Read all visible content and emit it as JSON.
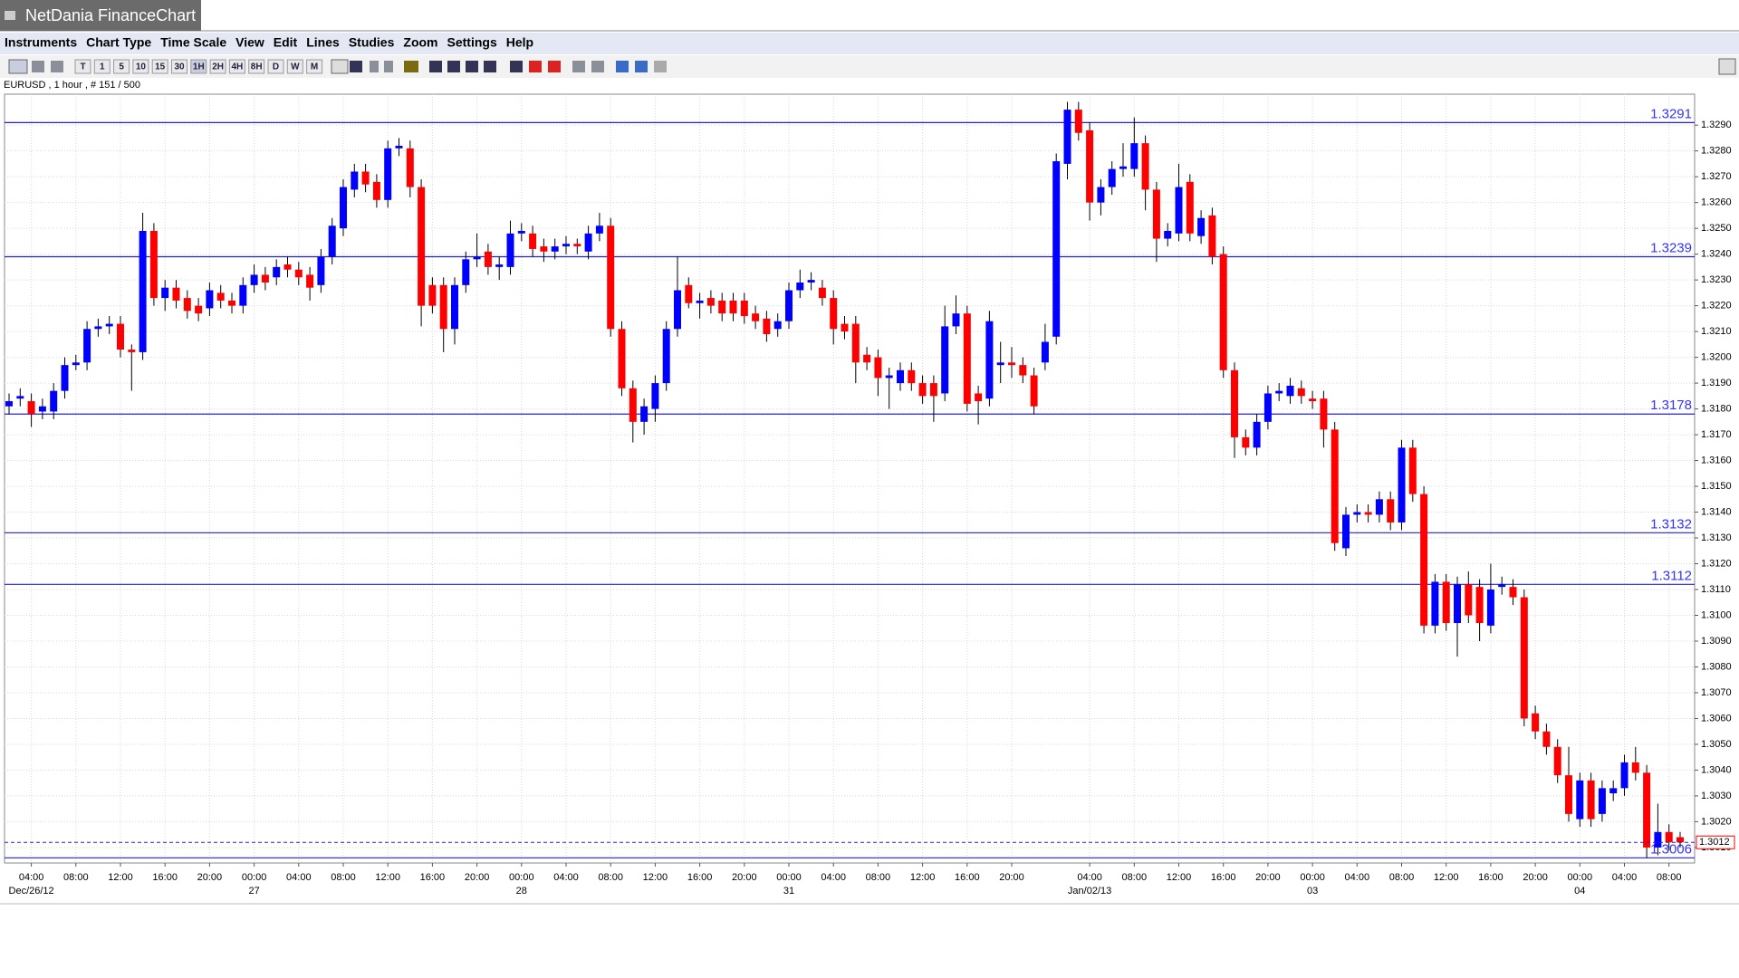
{
  "app": {
    "title": "NetDania FinanceChart",
    "menu": [
      "Instruments",
      "Chart Type",
      "Time Scale",
      "View",
      "Edit",
      "Lines",
      "Studies",
      "Zoom",
      "Settings",
      "Help"
    ],
    "toolbar": [
      "T",
      "1",
      "5",
      "10",
      "15",
      "30",
      "1H",
      "2H",
      "4H",
      "8H",
      "D",
      "W",
      "M"
    ],
    "symbol_info": "EURUSD , 1 hour , # 151 / 500"
  },
  "chart_data": {
    "type": "candlestick",
    "up_color": "#0000ff",
    "down_color": "#ff0000",
    "level_color": "#2222cc",
    "last_color": "#ff0000",
    "grid": true,
    "ylim": [
      1.3004,
      1.3302
    ],
    "yticks": [
      {
        "value": 1.301,
        "label": "1.3010"
      },
      {
        "value": 1.302,
        "label": "1.3020"
      },
      {
        "value": 1.303,
        "label": "1.3030"
      },
      {
        "value": 1.304,
        "label": "1.3040"
      },
      {
        "value": 1.305,
        "label": "1.3050"
      },
      {
        "value": 1.306,
        "label": "1.3060"
      },
      {
        "value": 1.307,
        "label": "1.3070"
      },
      {
        "value": 1.308,
        "label": "1.3080"
      },
      {
        "value": 1.309,
        "label": "1.3090"
      },
      {
        "value": 1.31,
        "label": "1.3100"
      },
      {
        "value": 1.311,
        "label": "1.3110"
      },
      {
        "value": 1.312,
        "label": "1.3120"
      },
      {
        "value": 1.313,
        "label": "1.3130"
      },
      {
        "value": 1.314,
        "label": "1.3140"
      },
      {
        "value": 1.315,
        "label": "1.3150"
      },
      {
        "value": 1.316,
        "label": "1.3160"
      },
      {
        "value": 1.317,
        "label": "1.3170"
      },
      {
        "value": 1.318,
        "label": "1.3180"
      },
      {
        "value": 1.319,
        "label": "1.3190"
      },
      {
        "value": 1.32,
        "label": "1.3200"
      },
      {
        "value": 1.321,
        "label": "1.3210"
      },
      {
        "value": 1.322,
        "label": "1.3220"
      },
      {
        "value": 1.323,
        "label": "1.3230"
      },
      {
        "value": 1.324,
        "label": "1.3240"
      },
      {
        "value": 1.325,
        "label": "1.3250"
      },
      {
        "value": 1.326,
        "label": "1.3260"
      },
      {
        "value": 1.327,
        "label": "1.3270"
      },
      {
        "value": 1.328,
        "label": "1.3280"
      },
      {
        "value": 1.329,
        "label": "1.3290"
      }
    ],
    "levels": [
      1.3291,
      1.3239,
      1.3178,
      1.3132,
      1.3112,
      1.3006
    ],
    "last_price": 1.3012,
    "categories": [
      null,
      null,
      "04:00",
      null,
      null,
      null,
      "08:00",
      null,
      null,
      null,
      "12:00",
      null,
      null,
      null,
      "16:00",
      null,
      null,
      null,
      "20:00",
      null,
      null,
      null,
      "00:00",
      null,
      null,
      null,
      "04:00",
      null,
      null,
      null,
      "08:00",
      null,
      null,
      null,
      "12:00",
      null,
      null,
      null,
      "16:00",
      null,
      null,
      null,
      "20:00",
      null,
      null,
      null,
      "00:00",
      null,
      null,
      null,
      "04:00",
      null,
      null,
      null,
      "08:00",
      null,
      null,
      null,
      "12:00",
      null,
      null,
      null,
      "16:00",
      null,
      null,
      null,
      "20:00",
      null,
      null,
      null,
      "00:00",
      null,
      null,
      null,
      "04:00",
      null,
      null,
      null,
      "08:00",
      null,
      null,
      null,
      "12:00",
      null,
      null,
      null,
      "16:00",
      null,
      null,
      null,
      "20:00",
      null,
      null,
      null,
      null,
      null,
      null,
      "04:00",
      null,
      null,
      null,
      "08:00",
      null,
      null,
      null,
      "12:00",
      null,
      null,
      null,
      "16:00",
      null,
      null,
      null,
      "20:00",
      null,
      null,
      null,
      "00:00",
      null,
      null,
      null,
      "04:00",
      null,
      null,
      null,
      "08:00",
      null,
      null,
      null,
      "12:00",
      null,
      null,
      null,
      "16:00",
      null,
      null,
      null,
      "20:00",
      null,
      null,
      null,
      "00:00",
      null,
      null,
      null,
      "04:00",
      null,
      null,
      null,
      "08:00",
      null
    ],
    "dates": [
      null,
      null,
      "Dec/26/12",
      null,
      null,
      null,
      null,
      null,
      null,
      null,
      null,
      null,
      null,
      null,
      null,
      null,
      null,
      null,
      null,
      null,
      null,
      null,
      "27",
      null,
      null,
      null,
      null,
      null,
      null,
      null,
      null,
      null,
      null,
      null,
      null,
      null,
      null,
      null,
      null,
      null,
      null,
      null,
      null,
      null,
      null,
      null,
      "28",
      null,
      null,
      null,
      null,
      null,
      null,
      null,
      null,
      null,
      null,
      null,
      null,
      null,
      null,
      null,
      null,
      null,
      null,
      null,
      null,
      null,
      null,
      null,
      "31",
      null,
      null,
      null,
      null,
      null,
      null,
      null,
      null,
      null,
      null,
      null,
      null,
      null,
      null,
      null,
      null,
      null,
      null,
      null,
      null,
      null,
      null,
      null,
      null,
      null,
      null,
      "Jan/02/13",
      null,
      null,
      null,
      null,
      null,
      null,
      null,
      null,
      null,
      null,
      null,
      null,
      null,
      null,
      null,
      null,
      null,
      null,
      null,
      "03",
      null,
      null,
      null,
      null,
      null,
      null,
      null,
      null,
      null,
      null,
      null,
      null,
      null,
      null,
      null,
      null,
      null,
      null,
      null,
      null,
      null,
      null,
      null,
      "04",
      null,
      null,
      null,
      null,
      null,
      null,
      null,
      null,
      null
    ],
    "ohlc": [
      [
        1.3181,
        1.3186,
        1.3178,
        1.3183
      ],
      [
        1.3184,
        1.3188,
        1.3181,
        1.3185
      ],
      [
        1.3183,
        1.3186,
        1.3173,
        1.3178
      ],
      [
        1.3179,
        1.3184,
        1.3176,
        1.3181
      ],
      [
        1.3179,
        1.319,
        1.3176,
        1.3187
      ],
      [
        1.3187,
        1.32,
        1.3184,
        1.3197
      ],
      [
        1.3197,
        1.3201,
        1.3195,
        1.3198
      ],
      [
        1.3198,
        1.3214,
        1.3195,
        1.3211
      ],
      [
        1.3211,
        1.3215,
        1.3208,
        1.3212
      ],
      [
        1.3212,
        1.3216,
        1.3209,
        1.3213
      ],
      [
        1.3213,
        1.3216,
        1.32,
        1.3203
      ],
      [
        1.3203,
        1.3205,
        1.3187,
        1.3202
      ],
      [
        1.3202,
        1.3256,
        1.3199,
        1.3249
      ],
      [
        1.3249,
        1.3252,
        1.322,
        1.3223
      ],
      [
        1.3223,
        1.323,
        1.3218,
        1.3227
      ],
      [
        1.3227,
        1.323,
        1.3219,
        1.3222
      ],
      [
        1.3223,
        1.3226,
        1.3215,
        1.3218
      ],
      [
        1.322,
        1.3223,
        1.3214,
        1.3217
      ],
      [
        1.3219,
        1.3229,
        1.3216,
        1.3226
      ],
      [
        1.3225,
        1.3228,
        1.3219,
        1.3222
      ],
      [
        1.3222,
        1.3225,
        1.3217,
        1.322
      ],
      [
        1.322,
        1.3231,
        1.3217,
        1.3228
      ],
      [
        1.3228,
        1.3236,
        1.3225,
        1.3232
      ],
      [
        1.3232,
        1.3235,
        1.3226,
        1.3229
      ],
      [
        1.3231,
        1.3238,
        1.3228,
        1.3235
      ],
      [
        1.3236,
        1.3239,
        1.3231,
        1.3234
      ],
      [
        1.3234,
        1.3237,
        1.3228,
        1.3231
      ],
      [
        1.3232,
        1.3235,
        1.3222,
        1.3227
      ],
      [
        1.3228,
        1.3242,
        1.3225,
        1.3239
      ],
      [
        1.3239,
        1.3254,
        1.3236,
        1.3251
      ],
      [
        1.325,
        1.3269,
        1.3247,
        1.3266
      ],
      [
        1.3265,
        1.3275,
        1.3262,
        1.3272
      ],
      [
        1.3272,
        1.3275,
        1.3264,
        1.3267
      ],
      [
        1.3268,
        1.3271,
        1.3258,
        1.3261
      ],
      [
        1.3261,
        1.3284,
        1.3258,
        1.3281
      ],
      [
        1.3281,
        1.3285,
        1.3278,
        1.3282
      ],
      [
        1.3281,
        1.3284,
        1.3262,
        1.3266
      ],
      [
        1.3266,
        1.3269,
        1.3212,
        1.322
      ],
      [
        1.3228,
        1.3231,
        1.3217,
        1.322
      ],
      [
        1.3228,
        1.3231,
        1.3202,
        1.3211
      ],
      [
        1.3211,
        1.3231,
        1.3205,
        1.3228
      ],
      [
        1.3228,
        1.3241,
        1.3225,
        1.3238
      ],
      [
        1.3238,
        1.3248,
        1.3235,
        1.3239
      ],
      [
        1.3241,
        1.3244,
        1.3232,
        1.3235
      ],
      [
        1.3235,
        1.3239,
        1.323,
        1.3236
      ],
      [
        1.3235,
        1.3253,
        1.3232,
        1.3248
      ],
      [
        1.3248,
        1.3252,
        1.3245,
        1.3249
      ],
      [
        1.3248,
        1.3251,
        1.3239,
        1.3242
      ],
      [
        1.3243,
        1.3246,
        1.3237,
        1.3241
      ],
      [
        1.3241,
        1.3246,
        1.3238,
        1.3243
      ],
      [
        1.3243,
        1.3247,
        1.324,
        1.3244
      ],
      [
        1.3244,
        1.3246,
        1.324,
        1.3243
      ],
      [
        1.3241,
        1.3251,
        1.3238,
        1.3248
      ],
      [
        1.3248,
        1.3256,
        1.3245,
        1.3251
      ],
      [
        1.3251,
        1.3254,
        1.3208,
        1.3211
      ],
      [
        1.3211,
        1.3214,
        1.3185,
        1.3188
      ],
      [
        1.3188,
        1.3191,
        1.3167,
        1.3175
      ],
      [
        1.3175,
        1.3184,
        1.317,
        1.3181
      ],
      [
        1.318,
        1.3193,
        1.3175,
        1.319
      ],
      [
        1.319,
        1.3214,
        1.3187,
        1.3211
      ],
      [
        1.3211,
        1.3239,
        1.3208,
        1.3226
      ],
      [
        1.3228,
        1.3231,
        1.3219,
        1.3221
      ],
      [
        1.3221,
        1.3225,
        1.3215,
        1.3222
      ],
      [
        1.3223,
        1.3226,
        1.3217,
        1.322
      ],
      [
        1.3222,
        1.3225,
        1.3214,
        1.3217
      ],
      [
        1.3222,
        1.3225,
        1.3214,
        1.3217
      ],
      [
        1.3222,
        1.3225,
        1.3213,
        1.3216
      ],
      [
        1.3217,
        1.322,
        1.3211,
        1.3214
      ],
      [
        1.3215,
        1.3218,
        1.3206,
        1.3209
      ],
      [
        1.3211,
        1.3217,
        1.3208,
        1.3214
      ],
      [
        1.3214,
        1.3229,
        1.3211,
        1.3226
      ],
      [
        1.3226,
        1.3234,
        1.3223,
        1.3229
      ],
      [
        1.3229,
        1.3233,
        1.3226,
        1.323
      ],
      [
        1.3227,
        1.323,
        1.322,
        1.3223
      ],
      [
        1.3223,
        1.3226,
        1.3205,
        1.3211
      ],
      [
        1.3213,
        1.3216,
        1.3207,
        1.321
      ],
      [
        1.3213,
        1.3216,
        1.319,
        1.3198
      ],
      [
        1.3201,
        1.3204,
        1.3195,
        1.3198
      ],
      [
        1.32,
        1.3203,
        1.3185,
        1.3192
      ],
      [
        1.3192,
        1.3196,
        1.318,
        1.3193
      ],
      [
        1.319,
        1.3198,
        1.3187,
        1.3195
      ],
      [
        1.3195,
        1.3198,
        1.3187,
        1.319
      ],
      [
        1.319,
        1.3193,
        1.3182,
        1.3185
      ],
      [
        1.319,
        1.3193,
        1.3175,
        1.3185
      ],
      [
        1.3186,
        1.322,
        1.3183,
        1.3212
      ],
      [
        1.3212,
        1.3224,
        1.3209,
        1.3217
      ],
      [
        1.3217,
        1.322,
        1.3179,
        1.3182
      ],
      [
        1.3186,
        1.3189,
        1.3174,
        1.3183
      ],
      [
        1.3184,
        1.3218,
        1.3181,
        1.3214
      ],
      [
        1.3197,
        1.3206,
        1.319,
        1.3198
      ],
      [
        1.3198,
        1.3204,
        1.3192,
        1.3197
      ],
      [
        1.3197,
        1.32,
        1.319,
        1.3193
      ],
      [
        1.3193,
        1.3196,
        1.3178,
        1.3181
      ],
      [
        1.3198,
        1.3213,
        1.3195,
        1.3206
      ],
      [
        1.3208,
        1.3279,
        1.3205,
        1.3276
      ],
      [
        1.3275,
        1.3299,
        1.3269,
        1.3296
      ],
      [
        1.3296,
        1.3299,
        1.3284,
        1.3287
      ],
      [
        1.3288,
        1.3291,
        1.3253,
        1.326
      ],
      [
        1.326,
        1.3269,
        1.3255,
        1.3266
      ],
      [
        1.3266,
        1.3276,
        1.3263,
        1.3273
      ],
      [
        1.3273,
        1.3283,
        1.327,
        1.3274
      ],
      [
        1.3273,
        1.3293,
        1.327,
        1.3283
      ],
      [
        1.3283,
        1.3286,
        1.3257,
        1.3265
      ],
      [
        1.3265,
        1.3268,
        1.3237,
        1.3246
      ],
      [
        1.3246,
        1.3252,
        1.3243,
        1.3249
      ],
      [
        1.3248,
        1.3275,
        1.3245,
        1.3266
      ],
      [
        1.3268,
        1.3271,
        1.3245,
        1.3248
      ],
      [
        1.3247,
        1.3257,
        1.3244,
        1.3254
      ],
      [
        1.3255,
        1.3258,
        1.3236,
        1.3239
      ],
      [
        1.324,
        1.3243,
        1.3192,
        1.3195
      ],
      [
        1.3195,
        1.3198,
        1.3161,
        1.3169
      ],
      [
        1.3169,
        1.3172,
        1.3162,
        1.3165
      ],
      [
        1.3165,
        1.3178,
        1.3162,
        1.3175
      ],
      [
        1.3175,
        1.3189,
        1.3172,
        1.3186
      ],
      [
        1.3186,
        1.319,
        1.3183,
        1.3187
      ],
      [
        1.3185,
        1.3192,
        1.3182,
        1.3189
      ],
      [
        1.3188,
        1.3191,
        1.3182,
        1.3185
      ],
      [
        1.3184,
        1.3187,
        1.318,
        1.3183
      ],
      [
        1.3184,
        1.3187,
        1.3165,
        1.3172
      ],
      [
        1.3172,
        1.3175,
        1.3125,
        1.3128
      ],
      [
        1.3126,
        1.3142,
        1.3123,
        1.3139
      ],
      [
        1.3139,
        1.3143,
        1.3136,
        1.314
      ],
      [
        1.314,
        1.3143,
        1.3136,
        1.3139
      ],
      [
        1.3139,
        1.3148,
        1.3136,
        1.3145
      ],
      [
        1.3145,
        1.3148,
        1.3133,
        1.3136
      ],
      [
        1.3136,
        1.3168,
        1.3133,
        1.3165
      ],
      [
        1.3165,
        1.3168,
        1.3144,
        1.3147
      ],
      [
        1.3147,
        1.315,
        1.3093,
        1.3096
      ],
      [
        1.3096,
        1.3116,
        1.3093,
        1.3113
      ],
      [
        1.3113,
        1.3116,
        1.3094,
        1.3097
      ],
      [
        1.3097,
        1.3115,
        1.3084,
        1.3112
      ],
      [
        1.3112,
        1.3117,
        1.3097,
        1.31
      ],
      [
        1.3111,
        1.3114,
        1.309,
        1.3097
      ],
      [
        1.3096,
        1.312,
        1.3093,
        1.311
      ],
      [
        1.3111,
        1.3115,
        1.3108,
        1.3112
      ],
      [
        1.3111,
        1.3114,
        1.3104,
        1.3107
      ],
      [
        1.3107,
        1.311,
        1.3057,
        1.306
      ],
      [
        1.3062,
        1.3065,
        1.3052,
        1.3055
      ],
      [
        1.3055,
        1.3058,
        1.3046,
        1.3049
      ],
      [
        1.3049,
        1.3052,
        1.3035,
        1.3038
      ],
      [
        1.3038,
        1.3049,
        1.302,
        1.3023
      ],
      [
        1.3021,
        1.3039,
        1.3018,
        1.3036
      ],
      [
        1.3036,
        1.3039,
        1.3018,
        1.3021
      ],
      [
        1.3023,
        1.3036,
        1.302,
        1.3033
      ],
      [
        1.3031,
        1.3036,
        1.3028,
        1.3033
      ],
      [
        1.3033,
        1.3046,
        1.303,
        1.3043
      ],
      [
        1.3043,
        1.3049,
        1.3036,
        1.3039
      ],
      [
        1.3039,
        1.3042,
        1.3006,
        1.301
      ],
      [
        1.301,
        1.3027,
        1.3007,
        1.3016
      ],
      [
        1.3016,
        1.3019,
        1.3009,
        1.3012
      ],
      [
        1.3014,
        1.3016,
        1.301,
        1.3012
      ]
    ]
  }
}
